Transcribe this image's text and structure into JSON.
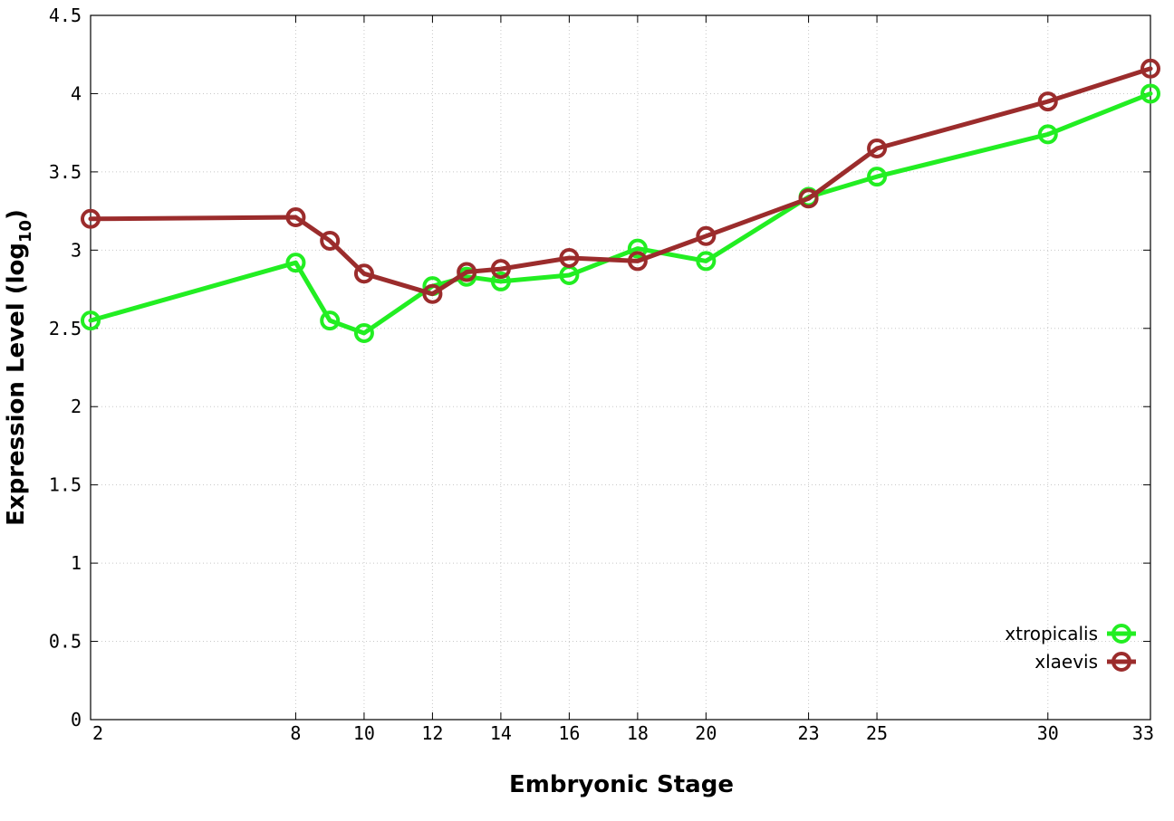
{
  "chart_data": {
    "type": "line",
    "xlabel": "Embryonic Stage",
    "ylabel": "Expression Level (log",
    "ylabel_subscript": "10",
    "ylabel_close": ")",
    "x": [
      2,
      8,
      9,
      10,
      12,
      13,
      14,
      16,
      18,
      20,
      23,
      25,
      30,
      33
    ],
    "xticks": [
      "2",
      "8",
      "10",
      "12",
      "14",
      "16",
      "18",
      "20",
      "23",
      "25",
      "30",
      "33"
    ],
    "xtick_values": [
      2,
      8,
      10,
      12,
      14,
      16,
      18,
      20,
      23,
      25,
      30,
      33
    ],
    "xlim": [
      2,
      33
    ],
    "ylim": [
      0,
      4.5
    ],
    "yticks": [
      "0",
      "0.5",
      "1",
      "1.5",
      "2",
      "2.5",
      "3",
      "3.5",
      "4",
      "4.5"
    ],
    "ytick_values": [
      0,
      0.5,
      1,
      1.5,
      2,
      2.5,
      3,
      3.5,
      4,
      4.5
    ],
    "grid": true,
    "legend_position": "bottom-right",
    "series": [
      {
        "name": "xtropicalis",
        "color": "#22ee22",
        "values": [
          2.55,
          2.92,
          2.55,
          2.47,
          2.77,
          2.83,
          2.8,
          2.84,
          3.01,
          2.93,
          3.34,
          3.47,
          3.74,
          4.0
        ]
      },
      {
        "name": "xlaevis",
        "color": "#9b2c2c",
        "values": [
          3.2,
          3.21,
          3.06,
          2.85,
          2.72,
          2.86,
          2.88,
          2.95,
          2.93,
          3.09,
          3.33,
          3.65,
          3.95,
          4.16
        ]
      }
    ]
  }
}
